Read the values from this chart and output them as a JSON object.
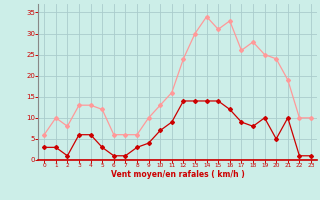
{
  "hours": [
    0,
    1,
    2,
    3,
    4,
    5,
    6,
    7,
    8,
    9,
    10,
    11,
    12,
    13,
    14,
    15,
    16,
    17,
    18,
    19,
    20,
    21,
    22,
    23
  ],
  "wind_avg": [
    3,
    3,
    1,
    6,
    6,
    3,
    1,
    1,
    3,
    4,
    7,
    9,
    14,
    14,
    14,
    14,
    12,
    9,
    8,
    10,
    5,
    10,
    1,
    1
  ],
  "wind_gust": [
    6,
    10,
    8,
    13,
    13,
    12,
    6,
    6,
    6,
    10,
    13,
    16,
    24,
    30,
    34,
    31,
    33,
    26,
    28,
    25,
    24,
    19,
    10,
    10
  ],
  "color_avg": "#cc0000",
  "color_gust": "#ff9999",
  "bg_color": "#cceee8",
  "grid_color": "#aacccc",
  "xlabel": "Vent moyen/en rafales ( km/h )",
  "ylim": [
    0,
    37
  ],
  "xlim_left": -0.5,
  "xlim_right": 23.5,
  "yticks": [
    0,
    5,
    10,
    15,
    20,
    25,
    30,
    35
  ],
  "xticks": [
    0,
    1,
    2,
    3,
    4,
    5,
    6,
    7,
    8,
    9,
    10,
    11,
    12,
    13,
    14,
    15,
    16,
    17,
    18,
    19,
    20,
    21,
    22,
    23
  ],
  "tick_color": "#cc0000",
  "xlabel_color": "#cc0000",
  "spine_color": "#cc0000",
  "marker": "D",
  "markersize": 2.0,
  "linewidth": 0.9
}
